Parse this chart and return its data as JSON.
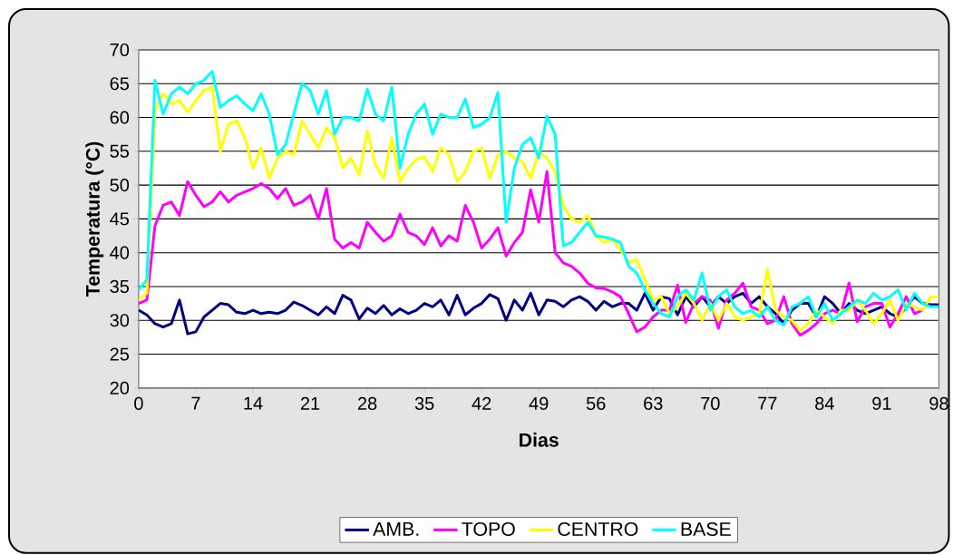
{
  "chart_data": {
    "type": "line",
    "xlabel": "Dias",
    "ylabel": "Temperatura (°C)",
    "x": [
      0,
      1,
      2,
      3,
      4,
      5,
      6,
      7,
      8,
      9,
      10,
      11,
      12,
      13,
      14,
      15,
      16,
      17,
      18,
      19,
      20,
      21,
      22,
      23,
      24,
      25,
      26,
      27,
      28,
      29,
      30,
      31,
      32,
      33,
      34,
      35,
      36,
      37,
      38,
      39,
      40,
      41,
      42,
      43,
      44,
      45,
      46,
      47,
      48,
      49,
      50,
      51,
      52,
      53,
      54,
      55,
      56,
      57,
      58,
      59,
      60,
      61,
      62,
      63,
      64,
      65,
      66,
      67,
      68,
      69,
      70,
      71,
      72,
      73,
      74,
      75,
      76,
      77,
      78,
      79,
      80,
      81,
      82,
      83,
      84,
      85,
      86,
      87,
      88,
      89,
      90,
      91,
      92,
      93,
      94,
      95,
      96,
      97,
      98
    ],
    "series": [
      {
        "name": "AMB.",
        "color": "#000080",
        "values": [
          31.5,
          30.8,
          29.5,
          29,
          29.5,
          33,
          28,
          28.3,
          30.5,
          31.5,
          32.5,
          32.3,
          31.2,
          31,
          31.5,
          31,
          31.2,
          31,
          31.5,
          32.7,
          32.2,
          31.5,
          30.8,
          32,
          31,
          33.7,
          33,
          30.2,
          31.8,
          31,
          32.2,
          30.8,
          31.7,
          31,
          31.5,
          32.5,
          32,
          33,
          30.8,
          33.7,
          30.8,
          31.8,
          32.5,
          33.8,
          33.2,
          30,
          33,
          31.5,
          34,
          30.8,
          33,
          32.8,
          32,
          33,
          33.5,
          32.8,
          31.5,
          32.8,
          32,
          32.5,
          32.5,
          31.5,
          34,
          31.5,
          33.5,
          33.2,
          30.8,
          33.5,
          32,
          33.5,
          32,
          33.5,
          32.5,
          33.5,
          34,
          32.5,
          33.5,
          32,
          31,
          29.5,
          31.5,
          32.5,
          32.5,
          30.5,
          33.5,
          32.5,
          31,
          32.5,
          31.5,
          31,
          31.5,
          32,
          31,
          30.5,
          null,
          33.5,
          32.5,
          32.3,
          32.3
        ]
      },
      {
        "name": "TOPO",
        "color": "#ff00ff",
        "values": [
          32.5,
          33,
          44,
          47,
          47.5,
          45.5,
          50.5,
          48.5,
          46.8,
          47.5,
          49,
          47.5,
          48.5,
          49,
          49.5,
          50.2,
          49.5,
          48,
          49.5,
          47,
          47.5,
          48.5,
          45,
          49.5,
          42,
          40.7,
          41.5,
          40.7,
          44.5,
          43,
          41.7,
          42.5,
          45.7,
          43,
          42.5,
          41.2,
          43.7,
          41,
          42.5,
          41.7,
          47,
          44.5,
          40.7,
          42,
          43.7,
          39.5,
          41.5,
          43,
          49.3,
          44.5,
          52,
          40,
          38.5,
          38,
          37,
          35.5,
          34.8,
          34.7,
          34.2,
          33.5,
          31,
          28.3,
          29,
          30.5,
          31.5,
          31.5,
          35.2,
          29.7,
          32.5,
          33.5,
          33,
          28.8,
          33,
          34,
          35.5,
          32,
          31.5,
          29.5,
          30,
          33.5,
          29.5,
          27.8,
          28.5,
          29.5,
          31,
          31.5,
          31,
          35.5,
          29.8,
          32,
          32.5,
          32.5,
          29,
          31,
          33.5,
          31,
          31.5,
          null,
          null
        ]
      },
      {
        "name": "CENTRO",
        "color": "#ffff00",
        "values": [
          33,
          34,
          61,
          63.5,
          62,
          62.5,
          60.8,
          62.5,
          64,
          64.5,
          55,
          59,
          59.5,
          57,
          52.5,
          55.5,
          51,
          54,
          55,
          54.5,
          59.5,
          57.5,
          55.5,
          58.5,
          57,
          52.5,
          54,
          51.5,
          58,
          53,
          51,
          57,
          50.5,
          52.5,
          53.8,
          54.2,
          52,
          55.5,
          54.5,
          50.5,
          52,
          55,
          55.5,
          51,
          54.5,
          55,
          54,
          53.5,
          51,
          55,
          54,
          52,
          47,
          45,
          44.5,
          45.5,
          42.5,
          41.5,
          42,
          40.5,
          38.5,
          39,
          36,
          33,
          33.5,
          31,
          32,
          34,
          32.5,
          30,
          32.5,
          30,
          32.5,
          30.5,
          30,
          30.5,
          31,
          37.5,
          31.5,
          30.5,
          30,
          28.5,
          29.5,
          31.5,
          30.5,
          29.5,
          31.5,
          31.5,
          33,
          31.5,
          29.5,
          31,
          33,
          30,
          32.5,
          32,
          31.5,
          33.5,
          33.5
        ]
      },
      {
        "name": "BASE",
        "color": "#00ffff",
        "values": [
          34.5,
          36,
          65.5,
          60.5,
          63.5,
          64.5,
          63.5,
          65,
          65.5,
          66.8,
          61.5,
          62.5,
          63.2,
          62,
          61,
          63.5,
          60.5,
          54.5,
          56,
          60.5,
          65,
          64,
          60.5,
          64,
          57.5,
          60,
          60,
          59.5,
          64.2,
          60.5,
          59.5,
          64.5,
          52.5,
          57.5,
          60.5,
          62,
          57.5,
          60.5,
          60,
          60,
          62.7,
          58.5,
          59,
          60,
          63.7,
          44.5,
          52.5,
          56,
          57,
          54,
          60.2,
          57.5,
          41,
          41.5,
          43,
          44.5,
          42.5,
          42.3,
          42,
          41.5,
          38,
          37,
          34.5,
          32.5,
          31,
          30.5,
          33.5,
          34.5,
          33,
          37,
          31.5,
          33.5,
          34.5,
          32,
          31,
          31.5,
          30.5,
          32,
          30,
          29.3,
          32,
          32.5,
          33.5,
          30.5,
          32.5,
          30,
          31,
          32,
          33,
          32.5,
          34,
          33,
          33.5,
          34.5,
          31.5,
          34,
          32.5,
          32,
          32
        ]
      }
    ],
    "xlim": [
      0,
      98
    ],
    "ylim": [
      20,
      70
    ],
    "xticks": [
      0,
      7,
      14,
      21,
      28,
      35,
      42,
      49,
      56,
      63,
      70,
      77,
      84,
      91,
      98
    ],
    "yticks": [
      20,
      25,
      30,
      35,
      40,
      45,
      50,
      55,
      60,
      65,
      70
    ],
    "grid": "y",
    "legend": "bottom",
    "marker": "none",
    "line_style": "solid"
  }
}
